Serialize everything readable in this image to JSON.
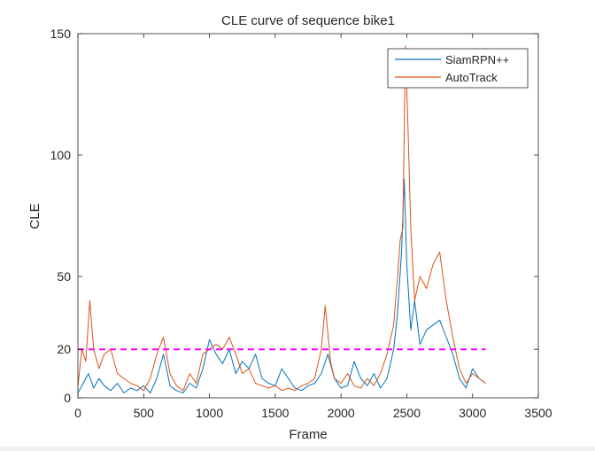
{
  "chart_data": {
    "type": "line",
    "title": "CLE curve of sequence bike1",
    "xlabel": "Frame",
    "ylabel": "CLE",
    "xlim": [
      0,
      3500
    ],
    "ylim": [
      0,
      150
    ],
    "xticks": [
      0,
      500,
      1000,
      1500,
      2000,
      2500,
      3000,
      3500
    ],
    "yticks": [
      0,
      20,
      50,
      100,
      150
    ],
    "legend_position": "top-right",
    "threshold": {
      "value": 20,
      "color": "#ff00ff",
      "style": "dashed"
    },
    "series": [
      {
        "name": "SiamRPN++",
        "color": "#0072bd",
        "points": [
          [
            0,
            2
          ],
          [
            40,
            6
          ],
          [
            80,
            10
          ],
          [
            120,
            4
          ],
          [
            160,
            8
          ],
          [
            200,
            5
          ],
          [
            250,
            3
          ],
          [
            300,
            6
          ],
          [
            350,
            2
          ],
          [
            400,
            4
          ],
          [
            450,
            3
          ],
          [
            500,
            5
          ],
          [
            550,
            2
          ],
          [
            600,
            8
          ],
          [
            650,
            18
          ],
          [
            700,
            5
          ],
          [
            750,
            3
          ],
          [
            800,
            2
          ],
          [
            850,
            6
          ],
          [
            900,
            4
          ],
          [
            950,
            12
          ],
          [
            1000,
            24
          ],
          [
            1050,
            18
          ],
          [
            1100,
            14
          ],
          [
            1150,
            20
          ],
          [
            1200,
            10
          ],
          [
            1250,
            15
          ],
          [
            1300,
            12
          ],
          [
            1350,
            18
          ],
          [
            1400,
            8
          ],
          [
            1450,
            6
          ],
          [
            1500,
            5
          ],
          [
            1550,
            12
          ],
          [
            1600,
            8
          ],
          [
            1650,
            4
          ],
          [
            1700,
            3
          ],
          [
            1750,
            5
          ],
          [
            1800,
            6
          ],
          [
            1850,
            10
          ],
          [
            1900,
            18
          ],
          [
            1950,
            8
          ],
          [
            2000,
            4
          ],
          [
            2050,
            5
          ],
          [
            2100,
            15
          ],
          [
            2150,
            8
          ],
          [
            2200,
            5
          ],
          [
            2250,
            10
          ],
          [
            2300,
            4
          ],
          [
            2350,
            8
          ],
          [
            2400,
            20
          ],
          [
            2430,
            35
          ],
          [
            2460,
            60
          ],
          [
            2480,
            90
          ],
          [
            2500,
            55
          ],
          [
            2530,
            28
          ],
          [
            2560,
            40
          ],
          [
            2600,
            22
          ],
          [
            2650,
            28
          ],
          [
            2700,
            30
          ],
          [
            2750,
            32
          ],
          [
            2800,
            25
          ],
          [
            2850,
            18
          ],
          [
            2900,
            8
          ],
          [
            2950,
            4
          ],
          [
            3000,
            12
          ],
          [
            3050,
            8
          ],
          [
            3100,
            6
          ]
        ]
      },
      {
        "name": "AutoTrack",
        "color": "#d95319",
        "points": [
          [
            0,
            5
          ],
          [
            30,
            20
          ],
          [
            60,
            15
          ],
          [
            90,
            40
          ],
          [
            120,
            20
          ],
          [
            160,
            12
          ],
          [
            200,
            18
          ],
          [
            250,
            20
          ],
          [
            300,
            10
          ],
          [
            350,
            8
          ],
          [
            400,
            6
          ],
          [
            450,
            5
          ],
          [
            500,
            3
          ],
          [
            550,
            8
          ],
          [
            600,
            18
          ],
          [
            650,
            25
          ],
          [
            700,
            10
          ],
          [
            750,
            5
          ],
          [
            800,
            3
          ],
          [
            850,
            10
          ],
          [
            900,
            6
          ],
          [
            950,
            18
          ],
          [
            1000,
            20
          ],
          [
            1050,
            22
          ],
          [
            1100,
            20
          ],
          [
            1150,
            25
          ],
          [
            1200,
            18
          ],
          [
            1250,
            10
          ],
          [
            1300,
            12
          ],
          [
            1350,
            6
          ],
          [
            1400,
            5
          ],
          [
            1450,
            4
          ],
          [
            1500,
            5
          ],
          [
            1550,
            3
          ],
          [
            1600,
            4
          ],
          [
            1650,
            3
          ],
          [
            1700,
            5
          ],
          [
            1750,
            6
          ],
          [
            1800,
            8
          ],
          [
            1850,
            20
          ],
          [
            1880,
            38
          ],
          [
            1920,
            15
          ],
          [
            1950,
            8
          ],
          [
            2000,
            6
          ],
          [
            2050,
            10
          ],
          [
            2100,
            5
          ],
          [
            2150,
            4
          ],
          [
            2200,
            8
          ],
          [
            2250,
            5
          ],
          [
            2300,
            10
          ],
          [
            2350,
            18
          ],
          [
            2400,
            30
          ],
          [
            2430,
            50
          ],
          [
            2450,
            65
          ],
          [
            2470,
            70
          ],
          [
            2490,
            145
          ],
          [
            2510,
            110
          ],
          [
            2530,
            70
          ],
          [
            2560,
            40
          ],
          [
            2600,
            50
          ],
          [
            2650,
            45
          ],
          [
            2700,
            55
          ],
          [
            2750,
            60
          ],
          [
            2800,
            40
          ],
          [
            2850,
            25
          ],
          [
            2900,
            12
          ],
          [
            2950,
            6
          ],
          [
            3000,
            10
          ],
          [
            3050,
            8
          ],
          [
            3100,
            6
          ]
        ]
      }
    ]
  }
}
